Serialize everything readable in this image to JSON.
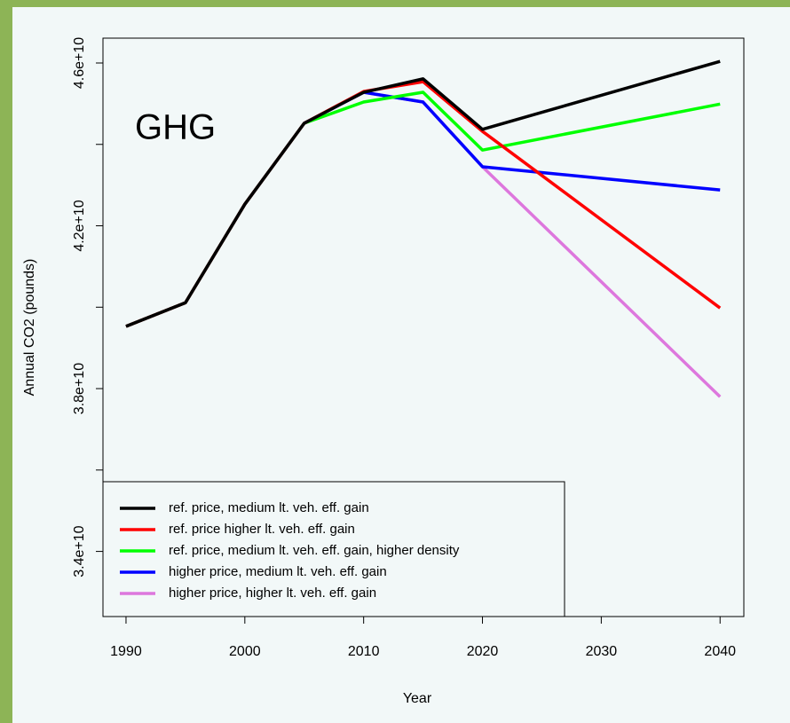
{
  "chart_data": {
    "type": "line",
    "annotation": "GHG",
    "x_label": "Year",
    "y_label": "Annual CO2 (pounds)",
    "x": [
      1990,
      1995,
      2000,
      2005,
      2010,
      2015,
      2020,
      2040
    ],
    "series": [
      {
        "name": "ref. price, medium lt. veh. eff. gain",
        "color": "#000000",
        "values": [
          39530000000,
          40110000000,
          42530000000,
          44520000000,
          45280000000,
          45610000000,
          44370000000,
          46040000000
        ]
      },
      {
        "name": "ref. price  higher lt. veh. eff. gain",
        "color": "#ff0000",
        "values": [
          39530000000,
          40110000000,
          42530000000,
          44520000000,
          45300000000,
          45540000000,
          44320000000,
          39980000000
        ]
      },
      {
        "name": "ref. price, medium lt. veh. eff. gain, higher density",
        "color": "#00ff00",
        "values": [
          39530000000,
          40110000000,
          42530000000,
          44520000000,
          45040000000,
          45280000000,
          43860000000,
          44990000000
        ]
      },
      {
        "name": "higher price, medium lt. veh. eff. gain",
        "color": "#0000ff",
        "values": [
          39530000000,
          40110000000,
          42530000000,
          44520000000,
          45280000000,
          45040000000,
          43450000000,
          42880000000
        ]
      },
      {
        "name": "higher price, higher lt. veh. eff. gain",
        "color": "#dd77dd",
        "values": [
          39530000000,
          40110000000,
          42530000000,
          44520000000,
          45280000000,
          45040000000,
          43450000000,
          37800000000
        ]
      }
    ],
    "xlim": [
      1988.06,
      2042.0
    ],
    "xticks": [
      1990,
      2000,
      2010,
      2020,
      2030,
      2040
    ],
    "ylim": [
      32400000000,
      46610000000
    ],
    "yticks": [
      {
        "value": 34000000000,
        "label": "3.4e+10"
      },
      {
        "value": 38000000000,
        "label": "3.8e+10"
      },
      {
        "value": 42000000000,
        "label": "4.2e+10"
      },
      {
        "value": 46000000000,
        "label": "4.6e+10"
      }
    ],
    "yticks_unlabeled": [
      36000000000,
      40000000000,
      44000000000
    ],
    "legend": "bottom-left"
  }
}
